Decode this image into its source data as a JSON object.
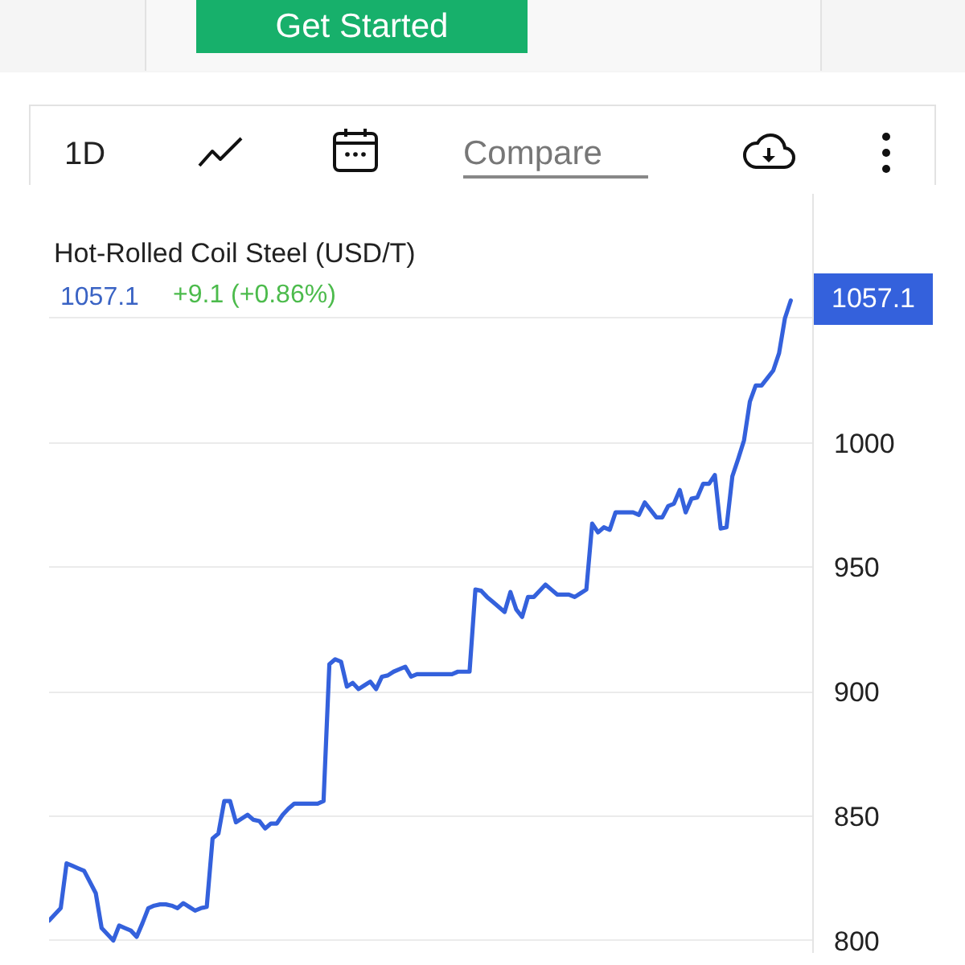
{
  "chart_data": {
    "type": "line",
    "title": "Hot-Rolled Coil Steel (USD/T)",
    "annotations": [
      "1057.1",
      "+9.1 (+0.86%)",
      "Get Started",
      "1D",
      "Compare"
    ],
    "categories": [
      null,
      null,
      null,
      null,
      null,
      null,
      null,
      null,
      null,
      null,
      null,
      null,
      null,
      null,
      null,
      null,
      null,
      null,
      null,
      null,
      null,
      null,
      null,
      null,
      null,
      null,
      null,
      null,
      null,
      null,
      null,
      null,
      null,
      null,
      null,
      null,
      null,
      null,
      null,
      null,
      null,
      null,
      null,
      null,
      null,
      null,
      null,
      null,
      null,
      null,
      null,
      null,
      null,
      null,
      null,
      null,
      null,
      null,
      null,
      null,
      null,
      null,
      null,
      null,
      null,
      null,
      null,
      null,
      null,
      null,
      null,
      null,
      null,
      null,
      null,
      null,
      null,
      null,
      null,
      null,
      null,
      null,
      null,
      null,
      null,
      null,
      null,
      null,
      null,
      null,
      null,
      null,
      null,
      null,
      null,
      null,
      null,
      null,
      null,
      null,
      null,
      null,
      null,
      null,
      null,
      null,
      null,
      null,
      null,
      null,
      null,
      null,
      null,
      null,
      null,
      null,
      null,
      null,
      null,
      null,
      null,
      null,
      null,
      null,
      null,
      null,
      null,
      null
    ],
    "series": [
      {
        "color": "#3461dc",
        "values": [
          808,
          810.5,
          813,
          831,
          830,
          829,
          828,
          823.5,
          819,
          805,
          802.5,
          800,
          806,
          805,
          804,
          801.5,
          807,
          813,
          814,
          814.5,
          814.5,
          814,
          813,
          815,
          813.5,
          812,
          813,
          813.5,
          841,
          843,
          856,
          856,
          847.5,
          849,
          850.5,
          848.5,
          848,
          845,
          847,
          847,
          850.5,
          853,
          855,
          855,
          855,
          855,
          855,
          856,
          911,
          913,
          912,
          902,
          903.5,
          901,
          902.5,
          904,
          901,
          906,
          906.5,
          908,
          909,
          910,
          906,
          907,
          907,
          907,
          907,
          907,
          907,
          907,
          908,
          908,
          908,
          941,
          940.5,
          938,
          936,
          934,
          932,
          940,
          933,
          930,
          938,
          938,
          940.5,
          943,
          941,
          939,
          939,
          939,
          938,
          939.5,
          941,
          967.5,
          964,
          966,
          965,
          972,
          972,
          972,
          972,
          971,
          976,
          973,
          970,
          970,
          974.5,
          975.5,
          981,
          972,
          977.5,
          978,
          983.5,
          983.5,
          987,
          965.5,
          966,
          986.5,
          993.5,
          1001,
          1016.5,
          1023,
          1023,
          1026,
          1029,
          1036,
          1050,
          1057.1
        ],
        "value_labels": [
          null,
          null,
          null,
          null,
          null,
          null,
          null,
          null,
          null,
          null,
          null,
          null,
          null,
          null,
          null,
          null,
          null,
          null,
          null,
          null,
          null,
          null,
          null,
          null,
          null,
          null,
          null,
          null,
          null,
          null,
          null,
          null,
          null,
          null,
          null,
          null,
          null,
          null,
          null,
          null,
          null,
          null,
          null,
          null,
          null,
          null,
          null,
          null,
          null,
          null,
          null,
          null,
          null,
          null,
          null,
          null,
          null,
          null,
          null,
          null,
          null,
          null,
          null,
          null,
          null,
          null,
          null,
          null,
          null,
          null,
          null,
          null,
          null,
          null,
          null,
          null,
          null,
          null,
          null,
          null,
          null,
          null,
          null,
          null,
          null,
          null,
          null,
          null,
          null,
          null,
          null,
          null,
          null,
          null,
          null,
          null,
          null,
          null,
          null,
          null,
          null,
          null,
          null,
          null,
          null,
          null,
          null,
          null,
          null,
          null,
          null,
          null,
          null,
          null,
          null,
          null,
          null,
          null,
          null,
          null,
          null,
          null,
          null,
          null,
          null,
          null,
          null,
          "1057.1"
        ]
      }
    ],
    "ylim": [
      795,
      1100
    ],
    "yticks": [
      800,
      850,
      900,
      950,
      1000,
      {
        "value": 1050,
        "label": null
      }
    ],
    "grid": "y",
    "tick_labels": "y",
    "line_style": "solid"
  }
}
